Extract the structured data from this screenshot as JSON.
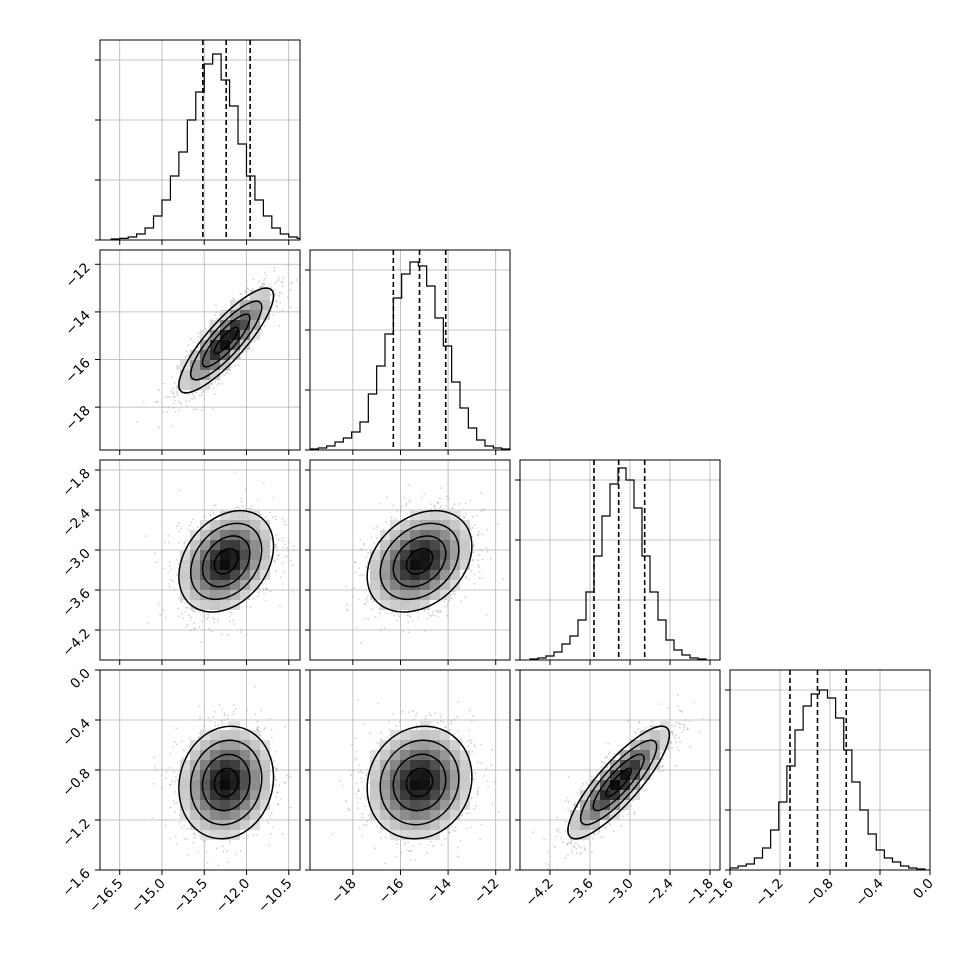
{
  "chart_data": {
    "type": "corner",
    "parameters": [
      {
        "range": [
          -17.2,
          -10.1
        ],
        "ticks": [
          -16.5,
          -15.0,
          -13.5,
          -12.0,
          -10.5
        ],
        "tick_labels": [
          "−16.5",
          "−15.0",
          "−13.5",
          "−12.0",
          "−10.5"
        ],
        "quantiles": [
          -13.55,
          -12.72,
          -11.87
        ],
        "hist_bins_start": -16.8,
        "hist_bin_width": 0.3,
        "hist_counts": [
          0.005,
          0.008,
          0.015,
          0.03,
          0.06,
          0.12,
          0.2,
          0.32,
          0.44,
          0.6,
          0.74,
          0.88,
          0.93,
          0.8,
          0.67,
          0.48,
          0.32,
          0.2,
          0.12,
          0.06,
          0.03,
          0.015,
          0.008
        ],
        "hist_yticks": [
          0,
          0.3,
          0.6,
          0.9
        ]
      },
      {
        "range": [
          -19.8,
          -11.4
        ],
        "ticks": [
          -18,
          -16,
          -14,
          -12
        ],
        "tick_labels": [
          "−18",
          "−16",
          "−14",
          "−12"
        ],
        "quantiles": [
          -16.3,
          -15.2,
          -14.1
        ],
        "hist_bins_start": -19.8,
        "hist_bin_width": 0.35,
        "hist_counts": [
          0.005,
          0.01,
          0.02,
          0.04,
          0.06,
          0.09,
          0.14,
          0.28,
          0.42,
          0.58,
          0.76,
          0.88,
          0.94,
          0.92,
          0.82,
          0.66,
          0.52,
          0.34,
          0.21,
          0.11,
          0.05,
          0.02,
          0.01,
          0.005
        ],
        "hist_yticks": [
          0,
          0.3,
          0.6,
          0.9
        ]
      },
      {
        "range": [
          -4.65,
          -1.65
        ],
        "ticks": [
          -4.2,
          -3.6,
          -3.0,
          -2.4,
          -1.8
        ],
        "tick_labels": [
          "−4.2",
          "−3.6",
          "−3.0",
          "−2.4",
          "−1.8"
        ],
        "quantiles": [
          -3.54,
          -3.17,
          -2.78
        ],
        "hist_bins_start": -4.5,
        "hist_bin_width": 0.12,
        "hist_counts": [
          0.005,
          0.01,
          0.02,
          0.04,
          0.08,
          0.12,
          0.2,
          0.34,
          0.52,
          0.72,
          0.88,
          0.96,
          0.9,
          0.76,
          0.52,
          0.34,
          0.2,
          0.1,
          0.05,
          0.025,
          0.01,
          0.005
        ],
        "hist_yticks": [
          0,
          0.3,
          0.6,
          0.9
        ]
      },
      {
        "range": [
          -1.6,
          0.0
        ],
        "ticks": [
          -1.6,
          -1.2,
          -0.8,
          -0.4,
          0.0
        ],
        "tick_labels": [
          "−1.6",
          "−1.2",
          "−0.8",
          "−0.4",
          "0.0"
        ],
        "quantiles": [
          -1.12,
          -0.9,
          -0.67
        ],
        "hist_bins_start": -1.6,
        "hist_bin_width": 0.065,
        "hist_counts": [
          0.01,
          0.02,
          0.03,
          0.06,
          0.11,
          0.2,
          0.34,
          0.52,
          0.7,
          0.82,
          0.88,
          0.9,
          0.86,
          0.76,
          0.6,
          0.44,
          0.3,
          0.18,
          0.1,
          0.06,
          0.04,
          0.02,
          0.01,
          0.005
        ],
        "hist_yticks": [
          0,
          0.3,
          0.6,
          0.9
        ]
      }
    ],
    "pairs": [
      {
        "row": 1,
        "col": 0,
        "correlation": 0.85
      },
      {
        "row": 2,
        "col": 0,
        "correlation": 0.3
      },
      {
        "row": 2,
        "col": 1,
        "correlation": 0.3
      },
      {
        "row": 3,
        "col": 0,
        "correlation": 0.1
      },
      {
        "row": 3,
        "col": 1,
        "correlation": 0.1
      },
      {
        "row": 3,
        "col": 2,
        "correlation": 0.85
      }
    ],
    "contour_levels_sigma": [
      0.5,
      1.0,
      1.5,
      2.0
    ],
    "grid": true,
    "colors": {
      "scatter": "#9a9a9a",
      "line": "#000000"
    }
  }
}
